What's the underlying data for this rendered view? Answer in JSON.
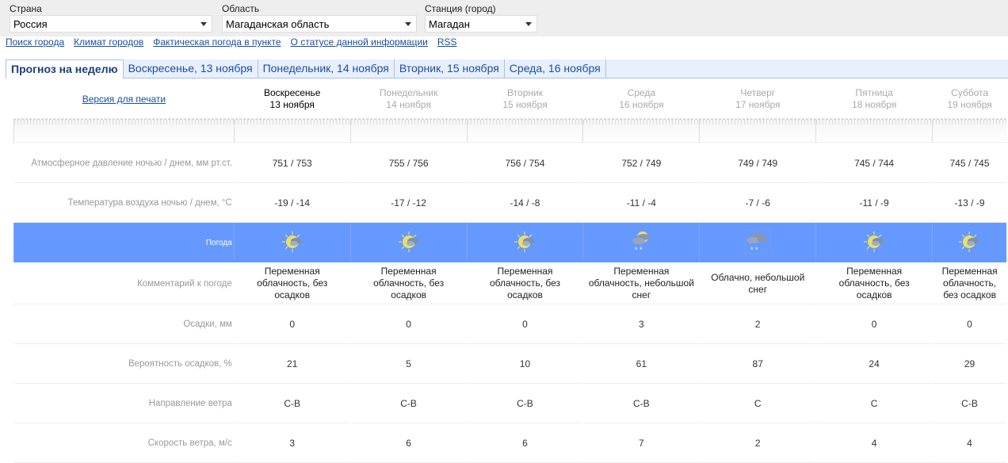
{
  "filters": [
    {
      "label": "Страна",
      "value": "Россия"
    },
    {
      "label": "Область",
      "value": "Магаданская область"
    },
    {
      "label": "Станция (город)",
      "value": "Магадан"
    }
  ],
  "links": [
    "Поиск города",
    "Климат городов",
    "Фактическая погода в пункте",
    "О статусе данной информации",
    "RSS"
  ],
  "tabs": [
    "Прогноз на неделю",
    "Воскресенье, 13 ноября",
    "Понедельник, 14 ноября",
    "Вторник, 15 ноября",
    "Среда, 16 ноября"
  ],
  "print_link": "Версия для печати",
  "row_labels": {
    "pressure": "Атмосферное давление ночью / днем, мм рт.ст.",
    "temp": "Температура воздуха ночью / днем, °C",
    "weather": "Погода",
    "comment": "Комментарий к погоде",
    "precip": "Осадки, мм",
    "prob": "Вероятность осадков, %",
    "wind_dir": "Направление ветра",
    "wind_speed": "Скорость ветра, м/с"
  },
  "colors": {
    "weather_row": "#6699ff",
    "link": "#1a4fa0"
  },
  "days": [
    {
      "name": "Воскресенье",
      "date": "13 ноября",
      "pressure": "751 / 753",
      "temp": "-19 / -14",
      "icon": "partly-cloudy-icon",
      "comment": "Переменная облачность, без осадков",
      "precip": "0",
      "prob": "21",
      "wind_dir": "С-В",
      "wind_speed": "3"
    },
    {
      "name": "Понедельник",
      "date": "14 ноября",
      "pressure": "755 / 756",
      "temp": "-17 / -12",
      "icon": "partly-cloudy-icon",
      "comment": "Переменная облачность, без осадков",
      "precip": "0",
      "prob": "5",
      "wind_dir": "С-В",
      "wind_speed": "6"
    },
    {
      "name": "Вторник",
      "date": "15 ноября",
      "pressure": "756 / 754",
      "temp": "-14 / -8",
      "icon": "partly-cloudy-icon",
      "comment": "Переменная облачность, без осадков",
      "precip": "0",
      "prob": "10",
      "wind_dir": "С-В",
      "wind_speed": "6"
    },
    {
      "name": "Среда",
      "date": "16 ноября",
      "pressure": "752 / 749",
      "temp": "-11 / -4",
      "icon": "partly-cloudy-snow-icon",
      "comment": "Переменная облачность, небольшой снег",
      "precip": "3",
      "prob": "61",
      "wind_dir": "С-В",
      "wind_speed": "7"
    },
    {
      "name": "Четверг",
      "date": "17 ноября",
      "pressure": "749 / 749",
      "temp": "-7 / -6",
      "icon": "cloudy-snow-icon",
      "comment": "Облачно, небольшой снег",
      "precip": "2",
      "prob": "87",
      "wind_dir": "С",
      "wind_speed": "2"
    },
    {
      "name": "Пятница",
      "date": "18 ноября",
      "pressure": "745 / 744",
      "temp": "-11 / -9",
      "icon": "partly-cloudy-icon",
      "comment": "Переменная облачность, без осадков",
      "precip": "0",
      "prob": "24",
      "wind_dir": "С",
      "wind_speed": "4"
    },
    {
      "name": "Суббота",
      "date": "19 ноября",
      "pressure": "745 / 745",
      "temp": "-13 / -9",
      "icon": "partly-cloudy-icon",
      "comment": "Переменная облачность, без осадков",
      "precip": "0",
      "prob": "29",
      "wind_dir": "С-В",
      "wind_speed": "4"
    }
  ]
}
